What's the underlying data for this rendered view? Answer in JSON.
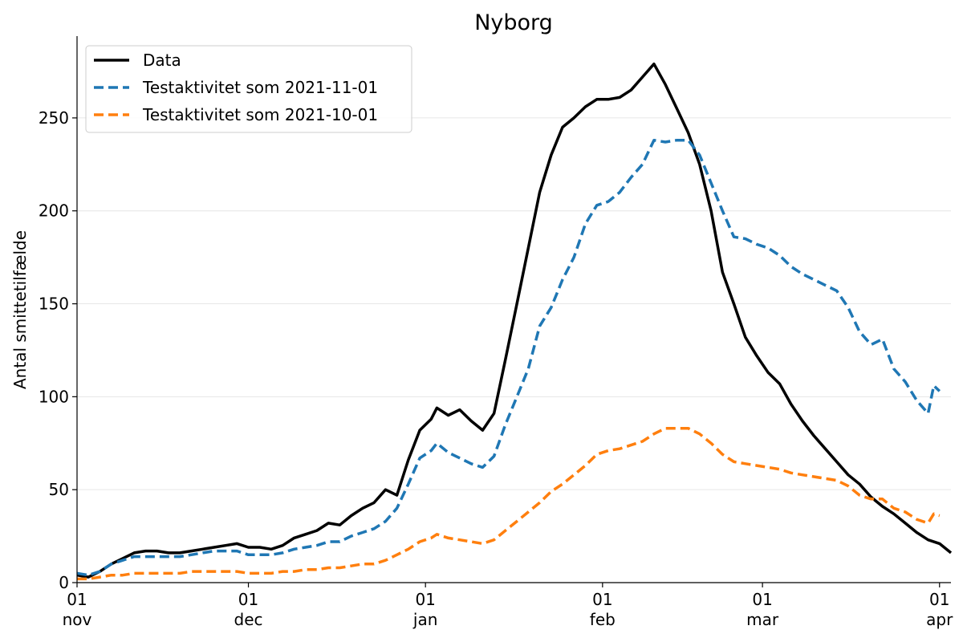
{
  "chart_data": {
    "type": "line",
    "title": "Nyborg",
    "xlabel": "",
    "ylabel": "Antal smittetilfælde",
    "ylim": [
      0,
      294
    ],
    "yticks": [
      0,
      50,
      100,
      150,
      200,
      250
    ],
    "xlim": [
      "2021-11-01",
      "2022-04-03"
    ],
    "xticks": [
      {
        "date": "2021-11-01",
        "day": "01",
        "month": "nov"
      },
      {
        "date": "2021-12-01",
        "day": "01",
        "month": "dec"
      },
      {
        "date": "2022-01-01",
        "day": "01",
        "month": "jan"
      },
      {
        "date": "2022-02-01",
        "day": "01",
        "month": "feb"
      },
      {
        "date": "2022-03-01",
        "day": "01",
        "month": "mar"
      },
      {
        "date": "2022-04-01",
        "day": "01",
        "month": "apr"
      }
    ],
    "grid": "horizontal",
    "legend_position": "top-left",
    "series": [
      {
        "name": "Data",
        "color": "#000000",
        "style": "solid",
        "points": [
          [
            "2021-11-01",
            4
          ],
          [
            "2021-11-03",
            3
          ],
          [
            "2021-11-05",
            6
          ],
          [
            "2021-11-07",
            10
          ],
          [
            "2021-11-09",
            13
          ],
          [
            "2021-11-11",
            16
          ],
          [
            "2021-11-13",
            17
          ],
          [
            "2021-11-15",
            17
          ],
          [
            "2021-11-17",
            16
          ],
          [
            "2021-11-19",
            16
          ],
          [
            "2021-11-21",
            17
          ],
          [
            "2021-11-23",
            18
          ],
          [
            "2021-11-25",
            19
          ],
          [
            "2021-11-27",
            20
          ],
          [
            "2021-11-29",
            21
          ],
          [
            "2021-12-01",
            19
          ],
          [
            "2021-12-03",
            19
          ],
          [
            "2021-12-05",
            18
          ],
          [
            "2021-12-07",
            20
          ],
          [
            "2021-12-09",
            24
          ],
          [
            "2021-12-11",
            26
          ],
          [
            "2021-12-13",
            28
          ],
          [
            "2021-12-15",
            32
          ],
          [
            "2021-12-17",
            31
          ],
          [
            "2021-12-19",
            36
          ],
          [
            "2021-12-21",
            40
          ],
          [
            "2021-12-23",
            43
          ],
          [
            "2021-12-25",
            50
          ],
          [
            "2021-12-27",
            47
          ],
          [
            "2021-12-29",
            66
          ],
          [
            "2021-12-31",
            82
          ],
          [
            "2022-01-02",
            88
          ],
          [
            "2022-01-03",
            94
          ],
          [
            "2022-01-05",
            90
          ],
          [
            "2022-01-07",
            93
          ],
          [
            "2022-01-09",
            87
          ],
          [
            "2022-01-11",
            82
          ],
          [
            "2022-01-13",
            91
          ],
          [
            "2022-01-15",
            120
          ],
          [
            "2022-01-17",
            150
          ],
          [
            "2022-01-19",
            180
          ],
          [
            "2022-01-21",
            210
          ],
          [
            "2022-01-23",
            230
          ],
          [
            "2022-01-25",
            245
          ],
          [
            "2022-01-27",
            250
          ],
          [
            "2022-01-29",
            256
          ],
          [
            "2022-01-31",
            260
          ],
          [
            "2022-02-02",
            260
          ],
          [
            "2022-02-04",
            261
          ],
          [
            "2022-02-06",
            265
          ],
          [
            "2022-02-08",
            272
          ],
          [
            "2022-02-10",
            279
          ],
          [
            "2022-02-12",
            268
          ],
          [
            "2022-02-14",
            255
          ],
          [
            "2022-02-16",
            242
          ],
          [
            "2022-02-18",
            225
          ],
          [
            "2022-02-20",
            200
          ],
          [
            "2022-02-22",
            167
          ],
          [
            "2022-02-24",
            150
          ],
          [
            "2022-02-26",
            132
          ],
          [
            "2022-02-28",
            122
          ],
          [
            "2022-03-02",
            113
          ],
          [
            "2022-03-04",
            107
          ],
          [
            "2022-03-06",
            96
          ],
          [
            "2022-03-08",
            87
          ],
          [
            "2022-03-10",
            79
          ],
          [
            "2022-03-12",
            72
          ],
          [
            "2022-03-14",
            65
          ],
          [
            "2022-03-16",
            58
          ],
          [
            "2022-03-18",
            53
          ],
          [
            "2022-03-20",
            46
          ],
          [
            "2022-03-22",
            41
          ],
          [
            "2022-03-24",
            37
          ],
          [
            "2022-03-26",
            32
          ],
          [
            "2022-03-28",
            27
          ],
          [
            "2022-03-30",
            23
          ],
          [
            "2022-04-01",
            21
          ],
          [
            "2022-04-03",
            16
          ]
        ]
      },
      {
        "name": "Testaktivitet som 2021-11-01",
        "color": "#1f77b4",
        "style": "dashed",
        "points": [
          [
            "2021-11-01",
            5
          ],
          [
            "2021-11-03",
            4
          ],
          [
            "2021-11-05",
            6
          ],
          [
            "2021-11-07",
            10
          ],
          [
            "2021-11-09",
            12
          ],
          [
            "2021-11-11",
            14
          ],
          [
            "2021-11-13",
            14
          ],
          [
            "2021-11-15",
            14
          ],
          [
            "2021-11-17",
            14
          ],
          [
            "2021-11-19",
            14
          ],
          [
            "2021-11-21",
            15
          ],
          [
            "2021-11-23",
            16
          ],
          [
            "2021-11-25",
            17
          ],
          [
            "2021-11-27",
            17
          ],
          [
            "2021-11-29",
            17
          ],
          [
            "2021-12-01",
            15
          ],
          [
            "2021-12-03",
            15
          ],
          [
            "2021-12-05",
            15
          ],
          [
            "2021-12-07",
            16
          ],
          [
            "2021-12-09",
            18
          ],
          [
            "2021-12-11",
            19
          ],
          [
            "2021-12-13",
            20
          ],
          [
            "2021-12-15",
            22
          ],
          [
            "2021-12-17",
            22
          ],
          [
            "2021-12-19",
            25
          ],
          [
            "2021-12-21",
            27
          ],
          [
            "2021-12-23",
            29
          ],
          [
            "2021-12-25",
            33
          ],
          [
            "2021-12-27",
            40
          ],
          [
            "2021-12-29",
            53
          ],
          [
            "2021-12-31",
            67
          ],
          [
            "2022-01-02",
            71
          ],
          [
            "2022-01-03",
            75
          ],
          [
            "2022-01-05",
            70
          ],
          [
            "2022-01-07",
            67
          ],
          [
            "2022-01-09",
            64
          ],
          [
            "2022-01-11",
            62
          ],
          [
            "2022-01-13",
            68
          ],
          [
            "2022-01-15",
            85
          ],
          [
            "2022-01-17",
            100
          ],
          [
            "2022-01-19",
            115
          ],
          [
            "2022-01-21",
            138
          ],
          [
            "2022-01-23",
            148
          ],
          [
            "2022-01-25",
            163
          ],
          [
            "2022-01-27",
            175
          ],
          [
            "2022-01-29",
            193
          ],
          [
            "2022-01-31",
            203
          ],
          [
            "2022-02-02",
            205
          ],
          [
            "2022-02-04",
            210
          ],
          [
            "2022-02-06",
            218
          ],
          [
            "2022-02-08",
            225
          ],
          [
            "2022-02-10",
            238
          ],
          [
            "2022-02-12",
            237
          ],
          [
            "2022-02-14",
            238
          ],
          [
            "2022-02-16",
            238
          ],
          [
            "2022-02-18",
            230
          ],
          [
            "2022-02-20",
            215
          ],
          [
            "2022-02-22",
            200
          ],
          [
            "2022-02-24",
            186
          ],
          [
            "2022-02-26",
            185
          ],
          [
            "2022-02-28",
            182
          ],
          [
            "2022-03-02",
            180
          ],
          [
            "2022-03-04",
            176
          ],
          [
            "2022-03-06",
            170
          ],
          [
            "2022-03-08",
            166
          ],
          [
            "2022-03-10",
            163
          ],
          [
            "2022-03-12",
            160
          ],
          [
            "2022-03-14",
            157
          ],
          [
            "2022-03-16",
            148
          ],
          [
            "2022-03-18",
            135
          ],
          [
            "2022-03-20",
            128
          ],
          [
            "2022-03-22",
            131
          ],
          [
            "2022-03-24",
            115
          ],
          [
            "2022-03-26",
            108
          ],
          [
            "2022-03-28",
            98
          ],
          [
            "2022-03-30",
            91
          ],
          [
            "2022-03-31",
            106
          ],
          [
            "2022-04-01",
            103
          ]
        ]
      },
      {
        "name": "Testaktivitet som 2021-10-01",
        "color": "#ff7f0e",
        "style": "dashed",
        "points": [
          [
            "2021-11-01",
            2
          ],
          [
            "2021-11-03",
            2
          ],
          [
            "2021-11-05",
            3
          ],
          [
            "2021-11-07",
            4
          ],
          [
            "2021-11-09",
            4
          ],
          [
            "2021-11-11",
            5
          ],
          [
            "2021-11-13",
            5
          ],
          [
            "2021-11-15",
            5
          ],
          [
            "2021-11-17",
            5
          ],
          [
            "2021-11-19",
            5
          ],
          [
            "2021-11-21",
            6
          ],
          [
            "2021-11-23",
            6
          ],
          [
            "2021-11-25",
            6
          ],
          [
            "2021-11-27",
            6
          ],
          [
            "2021-11-29",
            6
          ],
          [
            "2021-12-01",
            5
          ],
          [
            "2021-12-03",
            5
          ],
          [
            "2021-12-05",
            5
          ],
          [
            "2021-12-07",
            6
          ],
          [
            "2021-12-09",
            6
          ],
          [
            "2021-12-11",
            7
          ],
          [
            "2021-12-13",
            7
          ],
          [
            "2021-12-15",
            8
          ],
          [
            "2021-12-17",
            8
          ],
          [
            "2021-12-19",
            9
          ],
          [
            "2021-12-21",
            10
          ],
          [
            "2021-12-23",
            10
          ],
          [
            "2021-12-25",
            12
          ],
          [
            "2021-12-27",
            15
          ],
          [
            "2021-12-29",
            18
          ],
          [
            "2021-12-31",
            22
          ],
          [
            "2022-01-02",
            24
          ],
          [
            "2022-01-03",
            26
          ],
          [
            "2022-01-05",
            24
          ],
          [
            "2022-01-07",
            23
          ],
          [
            "2022-01-09",
            22
          ],
          [
            "2022-01-11",
            21
          ],
          [
            "2022-01-13",
            23
          ],
          [
            "2022-01-15",
            28
          ],
          [
            "2022-01-17",
            33
          ],
          [
            "2022-01-19",
            38
          ],
          [
            "2022-01-21",
            43
          ],
          [
            "2022-01-23",
            49
          ],
          [
            "2022-01-25",
            53
          ],
          [
            "2022-01-27",
            58
          ],
          [
            "2022-01-29",
            63
          ],
          [
            "2022-01-31",
            69
          ],
          [
            "2022-02-02",
            71
          ],
          [
            "2022-02-04",
            72
          ],
          [
            "2022-02-06",
            74
          ],
          [
            "2022-02-08",
            76
          ],
          [
            "2022-02-10",
            80
          ],
          [
            "2022-02-12",
            83
          ],
          [
            "2022-02-14",
            83
          ],
          [
            "2022-02-16",
            83
          ],
          [
            "2022-02-18",
            80
          ],
          [
            "2022-02-20",
            75
          ],
          [
            "2022-02-22",
            69
          ],
          [
            "2022-02-24",
            65
          ],
          [
            "2022-02-26",
            64
          ],
          [
            "2022-02-28",
            63
          ],
          [
            "2022-03-02",
            62
          ],
          [
            "2022-03-04",
            61
          ],
          [
            "2022-03-06",
            59
          ],
          [
            "2022-03-08",
            58
          ],
          [
            "2022-03-10",
            57
          ],
          [
            "2022-03-12",
            56
          ],
          [
            "2022-03-14",
            55
          ],
          [
            "2022-03-16",
            52
          ],
          [
            "2022-03-18",
            47
          ],
          [
            "2022-03-20",
            45
          ],
          [
            "2022-03-22",
            45
          ],
          [
            "2022-03-24",
            40
          ],
          [
            "2022-03-26",
            38
          ],
          [
            "2022-03-28",
            34
          ],
          [
            "2022-03-30",
            32
          ],
          [
            "2022-03-31",
            37
          ],
          [
            "2022-04-01",
            36
          ]
        ]
      }
    ]
  }
}
